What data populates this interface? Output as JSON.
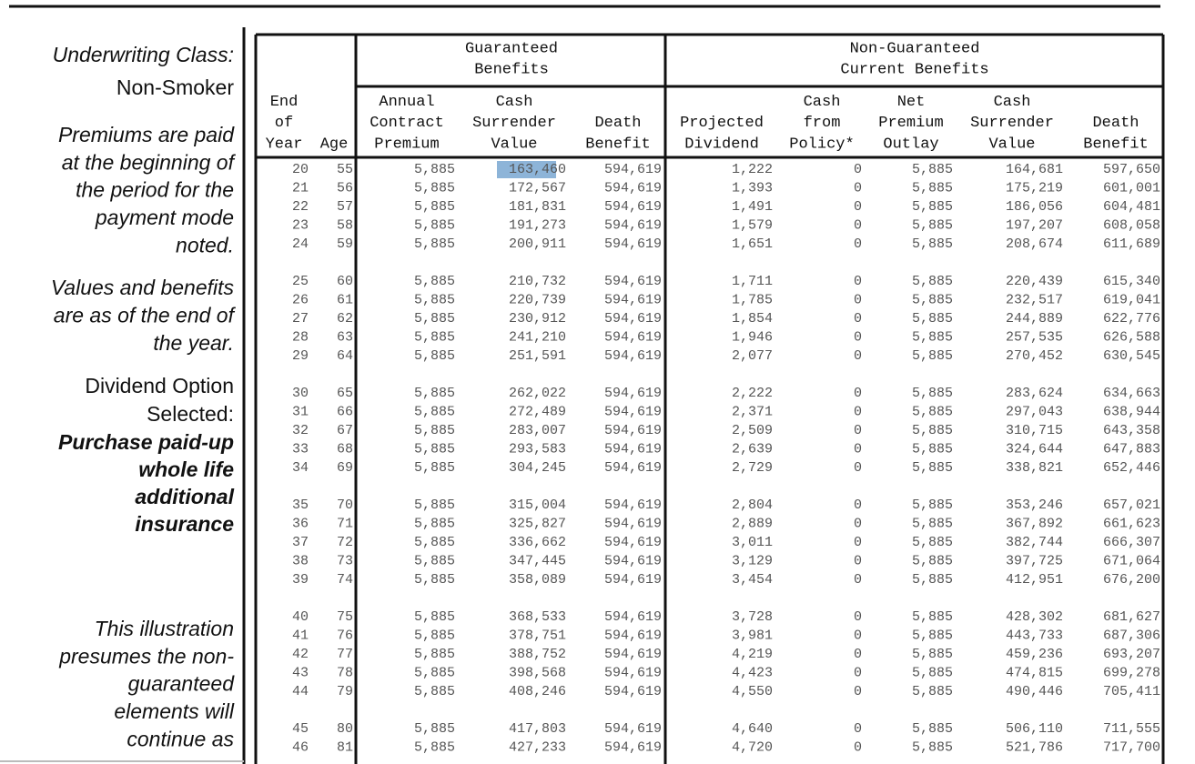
{
  "sidebar": [
    {
      "style": "italic",
      "lines": [
        "Underwriting Class:"
      ]
    },
    {
      "style": "normal",
      "lines": [
        "Non-Smoker"
      ]
    },
    {
      "style": "italic",
      "lines": [
        "Premiums are paid",
        "at the beginning of",
        "the period for the",
        "payment mode",
        "noted."
      ]
    },
    {
      "style": "italic",
      "lines": [
        "Values and benefits",
        "are as of the end of",
        "the year."
      ]
    },
    {
      "style": "normal",
      "lines": [
        "Dividend Option",
        "Selected:"
      ]
    },
    {
      "style": "bold-italic",
      "lines": [
        "Purchase paid-up",
        "whole life",
        "additional",
        "insurance"
      ]
    },
    {
      "style": "italic",
      "lines": [
        "This illustration",
        "presumes the non-",
        "guaranteed",
        "elements will",
        "continue as"
      ]
    }
  ],
  "table": {
    "group_headers": [
      [
        "Guaranteed",
        "Benefits"
      ],
      [
        "Non-Guaranteed",
        "Current Benefits"
      ]
    ],
    "column_headers": [
      [
        "End",
        "of",
        "Year"
      ],
      [
        "Age"
      ],
      [
        "Annual",
        "Contract",
        "Premium"
      ],
      [
        "Cash",
        "Surrender",
        "Value"
      ],
      [
        "Death",
        "Benefit"
      ],
      [
        "Projected",
        "Dividend"
      ],
      [
        "Cash",
        "from",
        "Policy*"
      ],
      [
        "Net",
        "Premium",
        "Outlay"
      ],
      [
        "Cash",
        "Surrender",
        "Value"
      ],
      [
        "Death",
        "Benefit"
      ]
    ],
    "rows": [
      [
        "20",
        "55",
        "5,885",
        "163,460",
        "594,619",
        "1,222",
        "0",
        "5,885",
        "164,681",
        "597,650"
      ],
      [
        "21",
        "56",
        "5,885",
        "172,567",
        "594,619",
        "1,393",
        "0",
        "5,885",
        "175,219",
        "601,001"
      ],
      [
        "22",
        "57",
        "5,885",
        "181,831",
        "594,619",
        "1,491",
        "0",
        "5,885",
        "186,056",
        "604,481"
      ],
      [
        "23",
        "58",
        "5,885",
        "191,273",
        "594,619",
        "1,579",
        "0",
        "5,885",
        "197,207",
        "608,058"
      ],
      [
        "24",
        "59",
        "5,885",
        "200,911",
        "594,619",
        "1,651",
        "0",
        "5,885",
        "208,674",
        "611,689"
      ],
      [
        "25",
        "60",
        "5,885",
        "210,732",
        "594,619",
        "1,711",
        "0",
        "5,885",
        "220,439",
        "615,340"
      ],
      [
        "26",
        "61",
        "5,885",
        "220,739",
        "594,619",
        "1,785",
        "0",
        "5,885",
        "232,517",
        "619,041"
      ],
      [
        "27",
        "62",
        "5,885",
        "230,912",
        "594,619",
        "1,854",
        "0",
        "5,885",
        "244,889",
        "622,776"
      ],
      [
        "28",
        "63",
        "5,885",
        "241,210",
        "594,619",
        "1,946",
        "0",
        "5,885",
        "257,535",
        "626,588"
      ],
      [
        "29",
        "64",
        "5,885",
        "251,591",
        "594,619",
        "2,077",
        "0",
        "5,885",
        "270,452",
        "630,545"
      ],
      [
        "30",
        "65",
        "5,885",
        "262,022",
        "594,619",
        "2,222",
        "0",
        "5,885",
        "283,624",
        "634,663"
      ],
      [
        "31",
        "66",
        "5,885",
        "272,489",
        "594,619",
        "2,371",
        "0",
        "5,885",
        "297,043",
        "638,944"
      ],
      [
        "32",
        "67",
        "5,885",
        "283,007",
        "594,619",
        "2,509",
        "0",
        "5,885",
        "310,715",
        "643,358"
      ],
      [
        "33",
        "68",
        "5,885",
        "293,583",
        "594,619",
        "2,639",
        "0",
        "5,885",
        "324,644",
        "647,883"
      ],
      [
        "34",
        "69",
        "5,885",
        "304,245",
        "594,619",
        "2,729",
        "0",
        "5,885",
        "338,821",
        "652,446"
      ],
      [
        "35",
        "70",
        "5,885",
        "315,004",
        "594,619",
        "2,804",
        "0",
        "5,885",
        "353,246",
        "657,021"
      ],
      [
        "36",
        "71",
        "5,885",
        "325,827",
        "594,619",
        "2,889",
        "0",
        "5,885",
        "367,892",
        "661,623"
      ],
      [
        "37",
        "72",
        "5,885",
        "336,662",
        "594,619",
        "3,011",
        "0",
        "5,885",
        "382,744",
        "666,307"
      ],
      [
        "38",
        "73",
        "5,885",
        "347,445",
        "594,619",
        "3,129",
        "0",
        "5,885",
        "397,725",
        "671,064"
      ],
      [
        "39",
        "74",
        "5,885",
        "358,089",
        "594,619",
        "3,454",
        "0",
        "5,885",
        "412,951",
        "676,200"
      ],
      [
        "40",
        "75",
        "5,885",
        "368,533",
        "594,619",
        "3,728",
        "0",
        "5,885",
        "428,302",
        "681,627"
      ],
      [
        "41",
        "76",
        "5,885",
        "378,751",
        "594,619",
        "3,981",
        "0",
        "5,885",
        "443,733",
        "687,306"
      ],
      [
        "42",
        "77",
        "5,885",
        "388,752",
        "594,619",
        "4,219",
        "0",
        "5,885",
        "459,236",
        "693,207"
      ],
      [
        "43",
        "78",
        "5,885",
        "398,568",
        "594,619",
        "4,423",
        "0",
        "5,885",
        "474,815",
        "699,278"
      ],
      [
        "44",
        "79",
        "5,885",
        "408,246",
        "594,619",
        "4,550",
        "0",
        "5,885",
        "490,446",
        "705,411"
      ],
      [
        "45",
        "80",
        "5,885",
        "417,803",
        "594,619",
        "4,640",
        "0",
        "5,885",
        "506,110",
        "711,555"
      ],
      [
        "46",
        "81",
        "5,885",
        "427,233",
        "594,619",
        "4,720",
        "0",
        "5,885",
        "521,786",
        "717,700"
      ]
    ]
  }
}
